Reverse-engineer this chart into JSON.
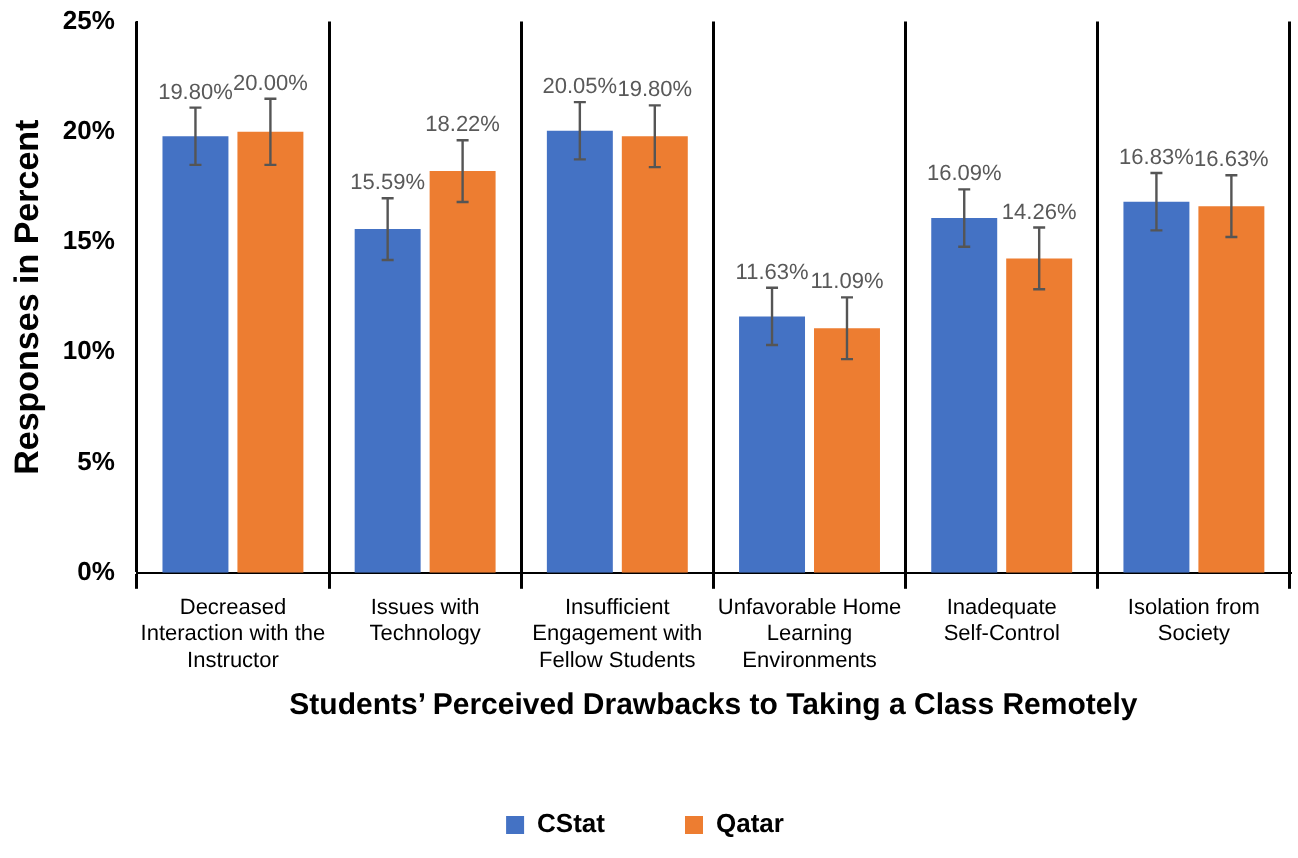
{
  "chart_data": {
    "type": "bar",
    "xlabel": "Students’ Perceived Drawbacks to Taking a Class Remotely",
    "ylabel": "Responses in Percent",
    "categories": [
      "Decreased Interaction with the Instructor",
      "Issues with Technology",
      "Insufficient Engagement with Fellow Students",
      "Unfavorable Home Learning Environments",
      "Inadequate Self-Control",
      "Isolation from Society"
    ],
    "series": [
      {
        "name": "CStat",
        "color": "#4472c4",
        "values": [
          19.8,
          15.59,
          20.05,
          11.63,
          16.09,
          16.83
        ],
        "errors": [
          1.3,
          1.4,
          1.3,
          1.3,
          1.3,
          1.3
        ],
        "value_labels": [
          "19.80%",
          "15.59%",
          "20.05%",
          "11.63%",
          "16.09%",
          "16.83%"
        ]
      },
      {
        "name": "Qatar",
        "color": "#ed7d31",
        "values": [
          20.0,
          18.22,
          19.8,
          11.09,
          14.26,
          16.63
        ],
        "errors": [
          1.5,
          1.4,
          1.4,
          1.4,
          1.4,
          1.4
        ],
        "value_labels": [
          "20.00%",
          "18.22%",
          "19.80%",
          "11.09%",
          "14.26%",
          "16.63%"
        ]
      }
    ],
    "ylim": [
      0,
      25
    ],
    "yticks": [
      {
        "value": 0,
        "label": "0%"
      },
      {
        "value": 5,
        "label": "5%"
      },
      {
        "value": 10,
        "label": "10%"
      },
      {
        "value": 15,
        "label": "15%"
      },
      {
        "value": 20,
        "label": "20%"
      },
      {
        "value": 25,
        "label": "25%"
      }
    ],
    "grid": "x",
    "legend": "bottom"
  }
}
